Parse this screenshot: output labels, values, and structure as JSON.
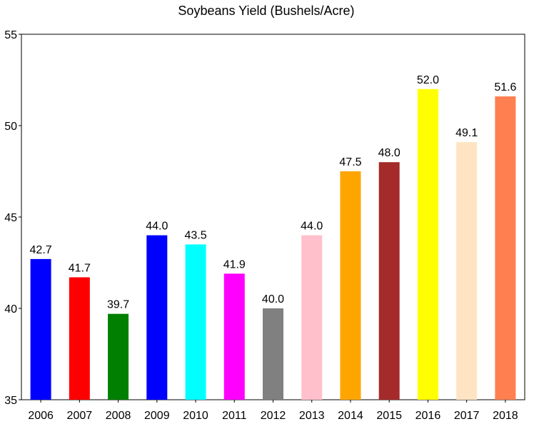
{
  "chart_data": {
    "type": "bar",
    "title": "Soybeans Yield (Bushels/Acre)",
    "xlabel": "",
    "ylabel": "",
    "categories": [
      "2006",
      "2007",
      "2008",
      "2009",
      "2010",
      "2011",
      "2012",
      "2013",
      "2014",
      "2015",
      "2016",
      "2017",
      "2018"
    ],
    "values": [
      42.7,
      41.7,
      39.7,
      44.0,
      43.5,
      41.9,
      40.0,
      44.0,
      47.5,
      48.0,
      52.0,
      49.1,
      51.6
    ],
    "value_labels": [
      "42.7",
      "41.7",
      "39.7",
      "44.0",
      "43.5",
      "41.9",
      "40.0",
      "44.0",
      "47.5",
      "48.0",
      "52.0",
      "49.1",
      "51.6"
    ],
    "colors": [
      "#0000ff",
      "#ff0000",
      "#008000",
      "#0000ff",
      "#00ffff",
      "#ff00ff",
      "#808080",
      "#ffc0cb",
      "#ffa500",
      "#a52a2a",
      "#ffff00",
      "#ffe4c4",
      "#ff7f50"
    ],
    "ylim": [
      35,
      55
    ],
    "yticks": [
      35,
      40,
      45,
      50,
      55
    ],
    "ytick_labels": [
      "35",
      "40",
      "45",
      "50",
      "55"
    ],
    "grid": false,
    "legend": "none"
  }
}
